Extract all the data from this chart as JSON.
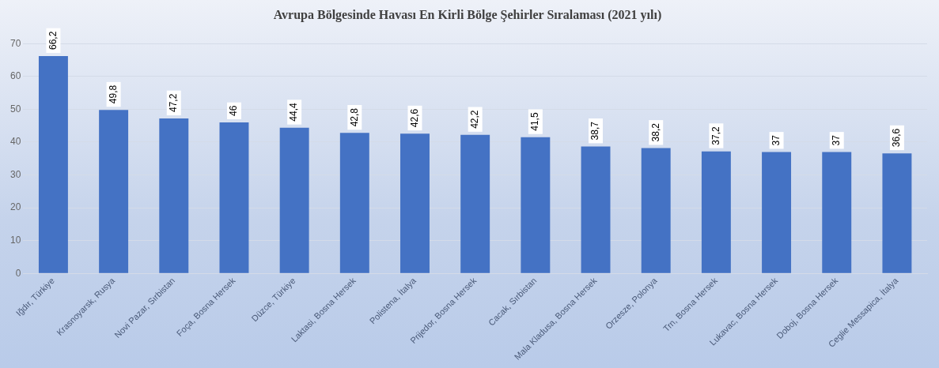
{
  "chart_data": {
    "type": "bar",
    "title": "Avrupa Bölgesinde Havası En Kirli Bölge Şehirler Sıralaması (2021 yılı)",
    "categories": [
      "Iğdır, Türkiye",
      "Krasnoyarsk, Rusya",
      "Novi Pazar, Sırbistan",
      "Foça, Bosna Hersek",
      "Düzce, Türkiye",
      "Laktasi, Bosna Hersek",
      "Polistena, İtalya",
      "Prijedor, Bosna Hersek",
      "Cacak, Sırbistan",
      "Mala Kladusa, Bosna Hersek",
      "Orzesze, Polonya",
      "Trn, Bosna Hersek",
      "Lukavac, Bosna Hersek",
      "Doboj, Bosna Hersek",
      "Ceglie Messapica, İtalya"
    ],
    "values": [
      66.2,
      49.8,
      47.2,
      46,
      44.4,
      42.8,
      42.6,
      42.2,
      41.5,
      38.7,
      38.2,
      37.2,
      37,
      37,
      36.6
    ],
    "value_labels": [
      "66,2",
      "49,8",
      "47,2",
      "46",
      "44,4",
      "42,8",
      "42,6",
      "42,2",
      "41,5",
      "38,7",
      "38,2",
      "37,2",
      "37",
      "37",
      "36,6"
    ],
    "color": "#4472c4",
    "ylim": [
      0,
      70
    ],
    "yticks": [
      0,
      10,
      20,
      30,
      40,
      50,
      60,
      70
    ],
    "grid": "y"
  }
}
